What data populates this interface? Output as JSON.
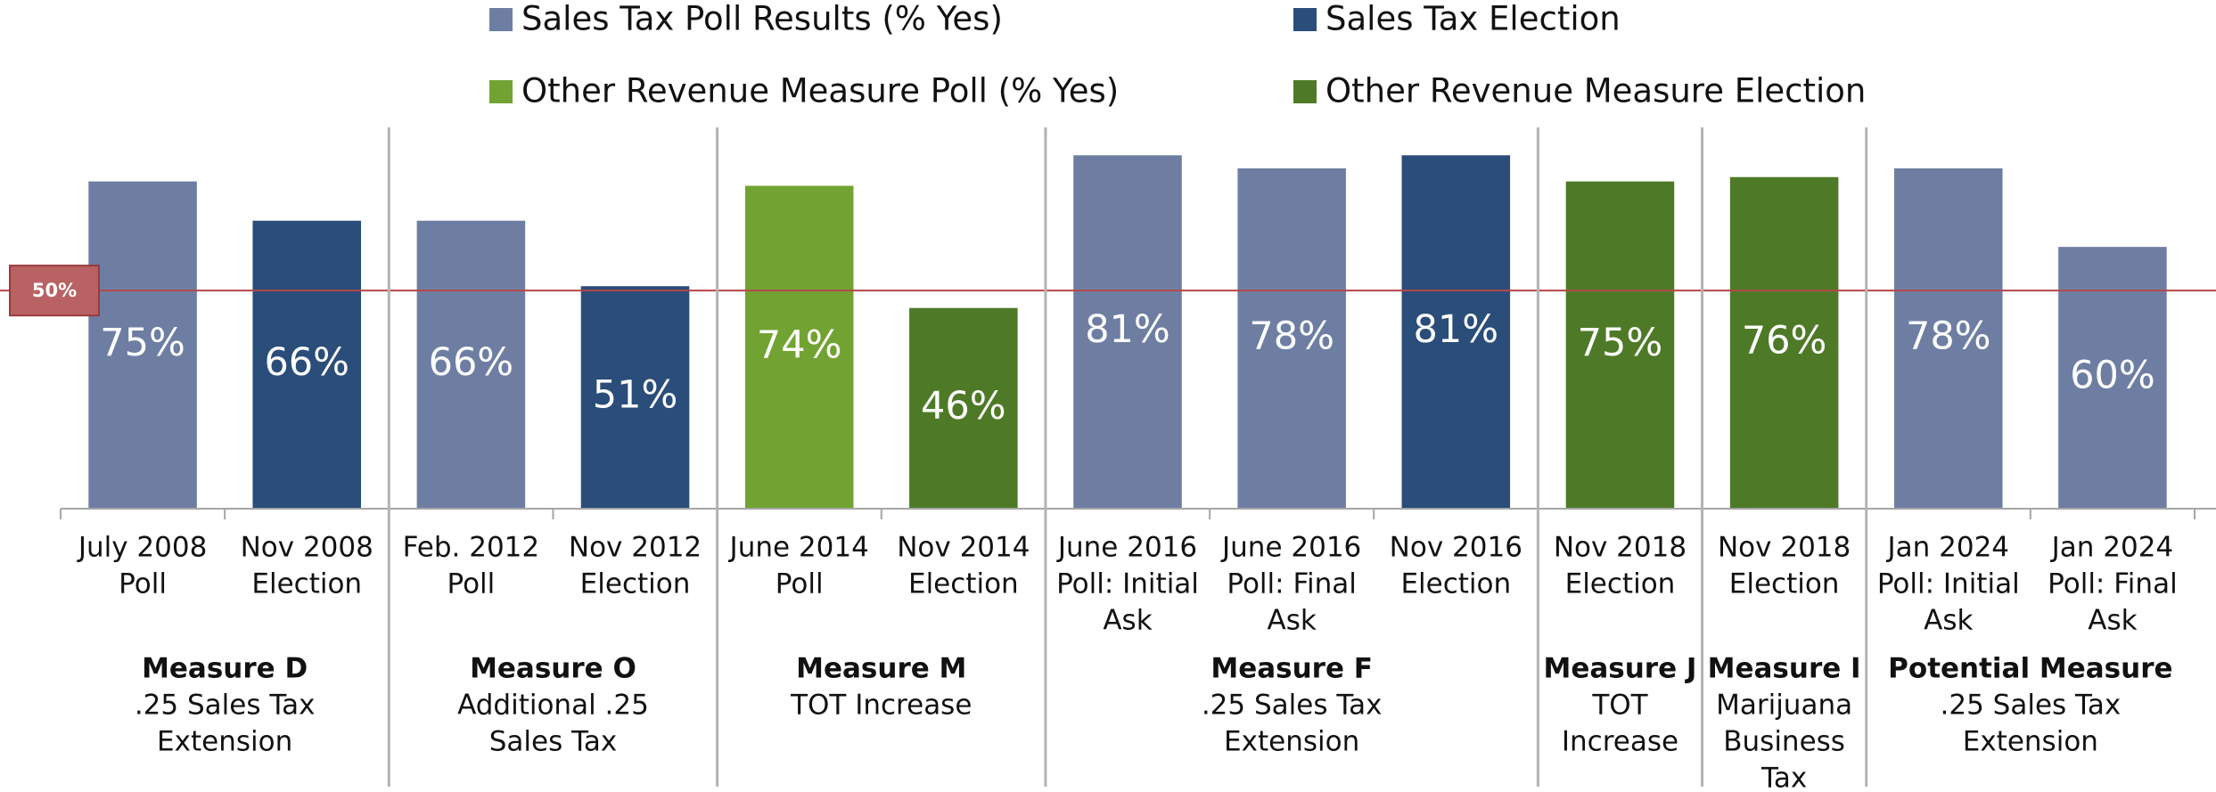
{
  "chart_data": {
    "type": "bar",
    "series": [
      {
        "name": "Sales Tax Poll Results (% Yes)",
        "color": "#6e7ea3",
        "values": [
          75,
          null,
          66,
          null,
          null,
          null,
          81,
          78,
          null,
          null,
          null,
          78,
          60
        ],
        "value_labels": [
          "75%",
          null,
          "66%",
          null,
          null,
          null,
          "81%",
          "78%",
          null,
          null,
          null,
          "78%",
          "60%"
        ]
      },
      {
        "name": "Sales Tax Election",
        "color": "#2a4d7a",
        "values": [
          null,
          66,
          null,
          51,
          null,
          null,
          null,
          null,
          81,
          null,
          null,
          null,
          null
        ],
        "value_labels": [
          null,
          "66%",
          null,
          "51%",
          null,
          null,
          null,
          null,
          "81%",
          null,
          null,
          null,
          null
        ]
      },
      {
        "name": "Other Revenue Measure Poll (% Yes)",
        "color": "#72a332",
        "values": [
          null,
          null,
          null,
          null,
          74,
          null,
          null,
          null,
          null,
          null,
          null,
          null,
          null
        ],
        "value_labels": [
          null,
          null,
          null,
          null,
          "74%",
          null,
          null,
          null,
          null,
          null,
          null,
          null,
          null
        ]
      },
      {
        "name": "Other Revenue Measure Election",
        "color": "#4e7a27",
        "values": [
          null,
          null,
          null,
          null,
          null,
          46,
          null,
          null,
          null,
          75,
          76,
          null,
          null
        ],
        "value_labels": [
          null,
          null,
          null,
          null,
          null,
          "46%",
          null,
          null,
          null,
          "75%",
          "76%",
          null,
          null
        ]
      }
    ],
    "groups": [
      {
        "name": "Measure D",
        "description": [
          ".25 Sales Tax",
          "Extension"
        ],
        "categories": [
          [
            "July 2008",
            "Poll"
          ],
          [
            "Nov 2008",
            "Election"
          ]
        ]
      },
      {
        "name": "Measure O",
        "description": [
          "Additional .25",
          "Sales Tax"
        ],
        "categories": [
          [
            "Feb. 2012",
            "Poll"
          ],
          [
            "Nov 2012",
            "Election"
          ]
        ]
      },
      {
        "name": "Measure M",
        "description": [
          "TOT Increase"
        ],
        "categories": [
          [
            "June 2014",
            "Poll"
          ],
          [
            "Nov 2014",
            "Election"
          ]
        ]
      },
      {
        "name": "Measure F",
        "description": [
          ".25 Sales Tax",
          "Extension"
        ],
        "categories": [
          [
            "June 2016",
            "Poll: Initial",
            "Ask"
          ],
          [
            "June 2016",
            "Poll: Final",
            "Ask"
          ],
          [
            "Nov 2016",
            "Election"
          ]
        ]
      },
      {
        "name": "Measure J",
        "description": [
          "TOT",
          "Increase"
        ],
        "categories": [
          [
            "Nov 2018",
            "Election"
          ]
        ]
      },
      {
        "name": "Measure I",
        "description": [
          "Marijuana",
          "Business",
          "Tax"
        ],
        "categories": [
          [
            "Nov 2018",
            "Election"
          ]
        ]
      },
      {
        "name": "Potential Measure",
        "description": [
          ".25 Sales Tax",
          "Extension"
        ],
        "categories": [
          [
            "Jan 2024",
            "Poll: Initial",
            "Ask"
          ],
          [
            "Jan 2024",
            "Poll: Final",
            "Ask"
          ]
        ]
      }
    ],
    "reference_line": {
      "value": 50,
      "label": "50%",
      "color": "#b5474a"
    },
    "ylim": [
      0,
      88
    ]
  }
}
